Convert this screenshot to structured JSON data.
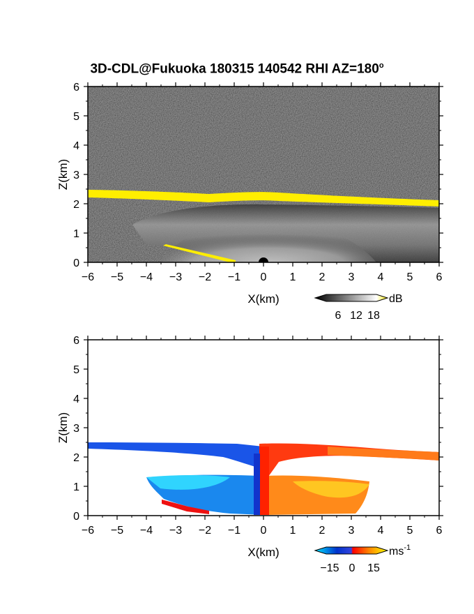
{
  "title": "3D-CDL@Fukuoka 180315 140542 RHI AZ=180",
  "title_superscript": "o",
  "chart_data": [
    {
      "type": "heatmap",
      "name": "backscatter-intensity",
      "xlabel": "X(km)",
      "ylabel": "Z(km)",
      "xlim": [
        -6,
        6
      ],
      "ylim": [
        0,
        6
      ],
      "x_ticks": [
        "-6",
        "-5",
        "-4",
        "-3",
        "-2",
        "-1",
        "0",
        "1",
        "2",
        "3",
        "4",
        "5",
        "6"
      ],
      "y_ticks": [
        "0",
        "1",
        "2",
        "3",
        "4",
        "5",
        "6"
      ],
      "background": "noise (dark grey/black)",
      "features": [
        {
          "feature": "cloud-base layer",
          "z_west_km": 2.35,
          "z_center_km": 2.25,
          "z_east_km": 2.02,
          "thickness_km": 0.12,
          "color": "#ffee00"
        },
        {
          "feature": "boundary layer aerosol",
          "z_top_km": 1.8,
          "x_range_km": [
            -4.5,
            6
          ],
          "shade": "grey 6-18 dB"
        },
        {
          "feature": "ground clutter line",
          "x_range_km": [
            -3.4,
            -0.8
          ],
          "z_range_km": [
            0.55,
            0.0
          ],
          "color": "#ffee00"
        }
      ],
      "colorbar": {
        "label": "dB",
        "ticks": [
          "6",
          "12",
          "18"
        ],
        "colors": [
          "#000000",
          "#ffffff",
          "#ffee00"
        ]
      }
    },
    {
      "type": "heatmap",
      "name": "radial-velocity",
      "xlabel": "X(km)",
      "ylabel": "Z(km)",
      "xlim": [
        -6,
        6
      ],
      "ylim": [
        0,
        6
      ],
      "x_ticks": [
        "-6",
        "-5",
        "-4",
        "-3",
        "-2",
        "-1",
        "0",
        "1",
        "2",
        "3",
        "4",
        "5",
        "6"
      ],
      "y_ticks": [
        "0",
        "1",
        "2",
        "3",
        "4",
        "5",
        "6"
      ],
      "features": [
        {
          "feature": "westward flow aloft",
          "x_range_km": [
            -6,
            0
          ],
          "z_range_km": [
            2.1,
            2.4
          ],
          "velocity_ms": -12
        },
        {
          "feature": "eastward flow aloft",
          "x_range_km": [
            0,
            6
          ],
          "z_range_km": [
            2.0,
            2.4
          ],
          "velocity_ms": 12
        },
        {
          "feature": "low-level westward",
          "x_range_km": [
            -3.5,
            0
          ],
          "z_range_km": [
            0.0,
            1.3
          ],
          "velocity_ms": -14
        },
        {
          "feature": "low-level eastward",
          "x_range_km": [
            0,
            3.7
          ],
          "z_range_km": [
            0.0,
            1.3
          ],
          "velocity_ms": 12
        }
      ],
      "colorbar": {
        "label": "ms",
        "label_superscript": "-1",
        "ticks": [
          "-15",
          "0",
          "15"
        ],
        "colors": [
          "#00e5ff",
          "#0033cc",
          "#ff0000",
          "#ffff00"
        ]
      }
    }
  ]
}
